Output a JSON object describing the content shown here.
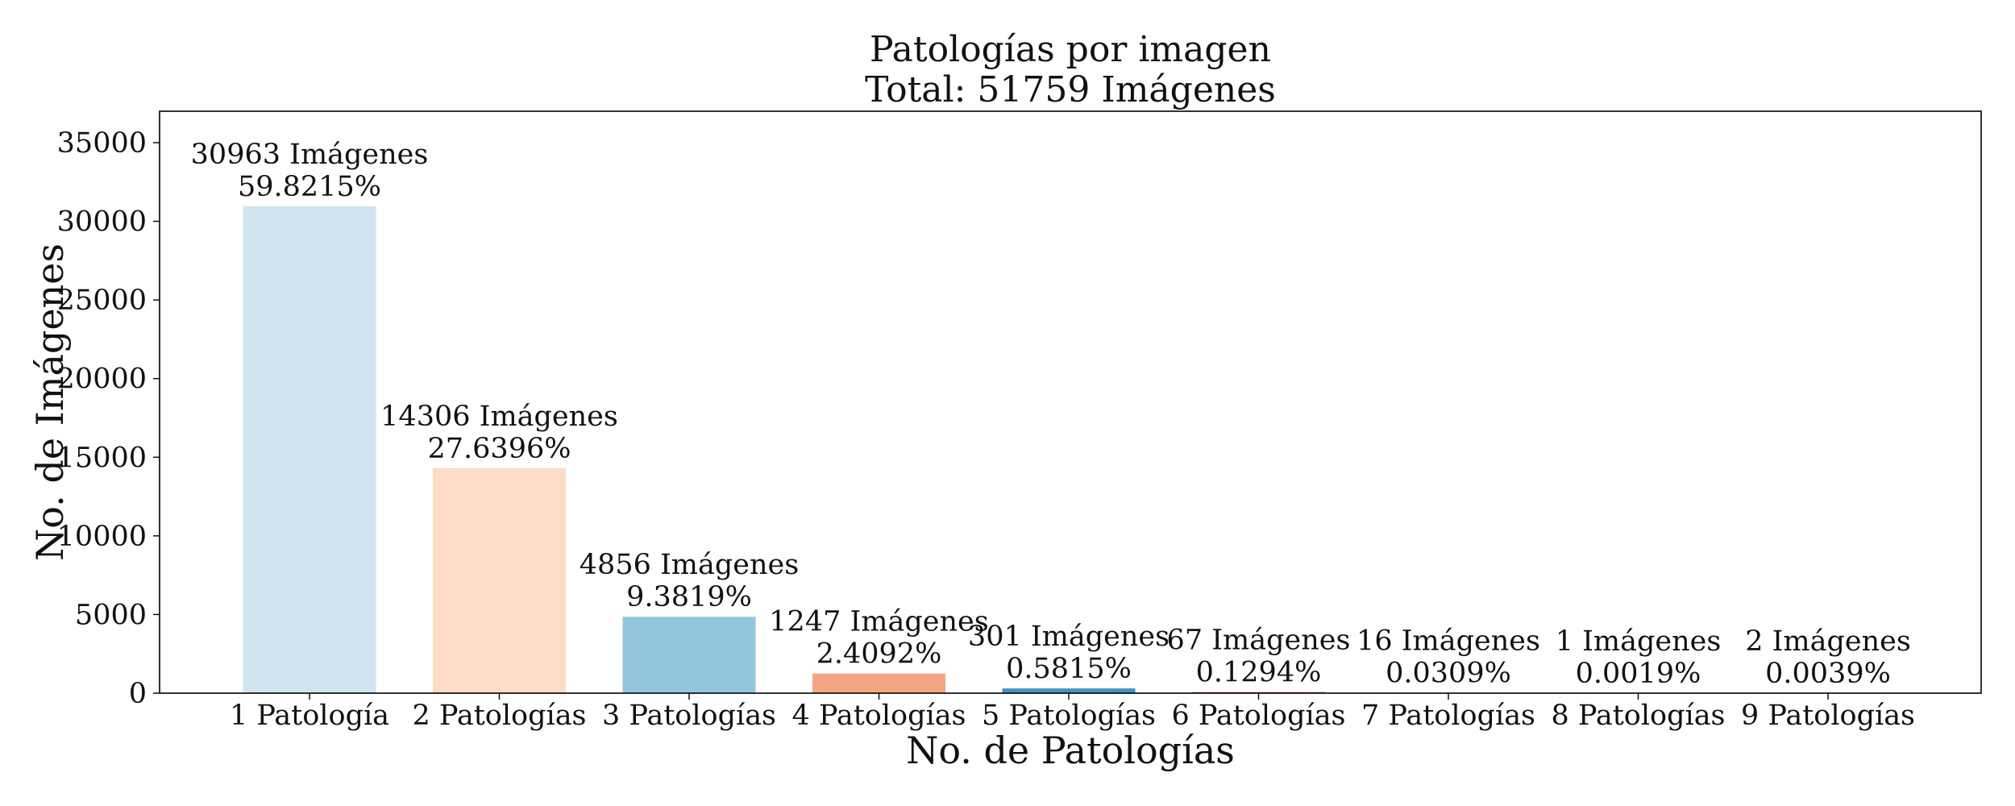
{
  "chart_data": {
    "type": "bar",
    "title": "Patologías por imagen",
    "subtitle": "Total: 51759 Imágenes",
    "xlabel": "No. de Patologías",
    "ylabel": "No. de Imágenes",
    "ylim": [
      0,
      37000
    ],
    "yticks": [
      0,
      5000,
      10000,
      15000,
      20000,
      25000,
      30000,
      35000
    ],
    "grid": false,
    "categories": [
      "1 Patología",
      "2 Patologías",
      "3 Patologías",
      "4 Patologías",
      "5 Patologías",
      "6 Patologías",
      "7 Patologías",
      "8 Patologías",
      "9 Patologías"
    ],
    "values": [
      30963,
      14306,
      4856,
      1247,
      301,
      67,
      16,
      1,
      2
    ],
    "count_labels": [
      "30963 Imágenes",
      "14306 Imágenes",
      "4856 Imágenes",
      "1247 Imágenes",
      "301 Imágenes",
      "67 Imágenes",
      "16 Imágenes",
      "1 Imágenes",
      "2 Imágenes"
    ],
    "percent_labels": [
      "59.8215%",
      "27.6396%",
      "9.3819%",
      "2.4092%",
      "0.5815%",
      "0.1294%",
      "0.0309%",
      "0.0019%",
      "0.0039%"
    ],
    "colors": [
      "#d1e5f0",
      "#fddbc7",
      "#92c5de",
      "#f4a582",
      "#4393c3",
      "#d6604d",
      "#2166ac",
      "#b2182b",
      "#053061"
    ]
  }
}
